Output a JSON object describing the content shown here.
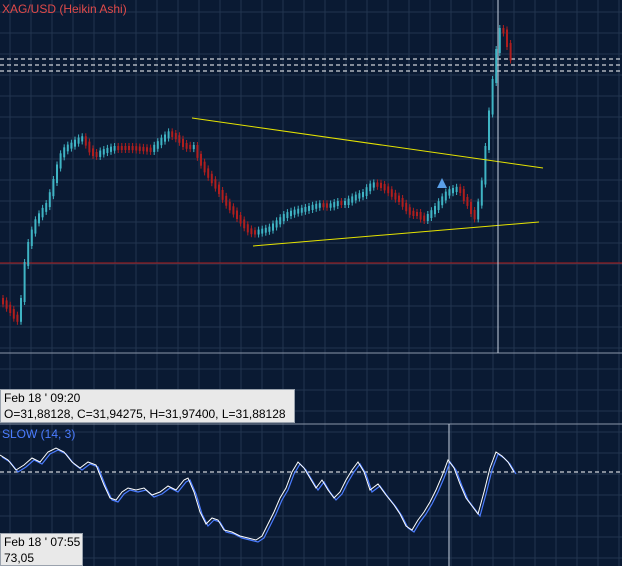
{
  "main_title": "XAG/USD (Heikin Ashi)",
  "main_info": {
    "time": "Feb 18 ' 09:20",
    "ohlc": "O=31,88128, C=31,94275, H=31,97400, L=31,88128"
  },
  "osc_title": "SLOW (14, 3)",
  "osc_info": {
    "time": "Feb 18 ' 07:55",
    "value": "73,05"
  },
  "colors": {
    "background": "#0a1a33",
    "grid": "#22344f",
    "bull_candle": "#3fb4c4",
    "bear_candle": "#b01e1e",
    "trendline": "#e5e300",
    "horizontal_line": "#b01e1e",
    "dashed_levels": "#ffffff",
    "crosshair": "#c8d2e0",
    "osc_line": "#ffffff",
    "osc_signal": "#4b7cff",
    "title": "#e04a4a",
    "osc_title": "#4b7cff",
    "arrow": "#5aa0e8"
  },
  "icons": {
    "buy_arrow": "up-triangle-icon"
  }
}
